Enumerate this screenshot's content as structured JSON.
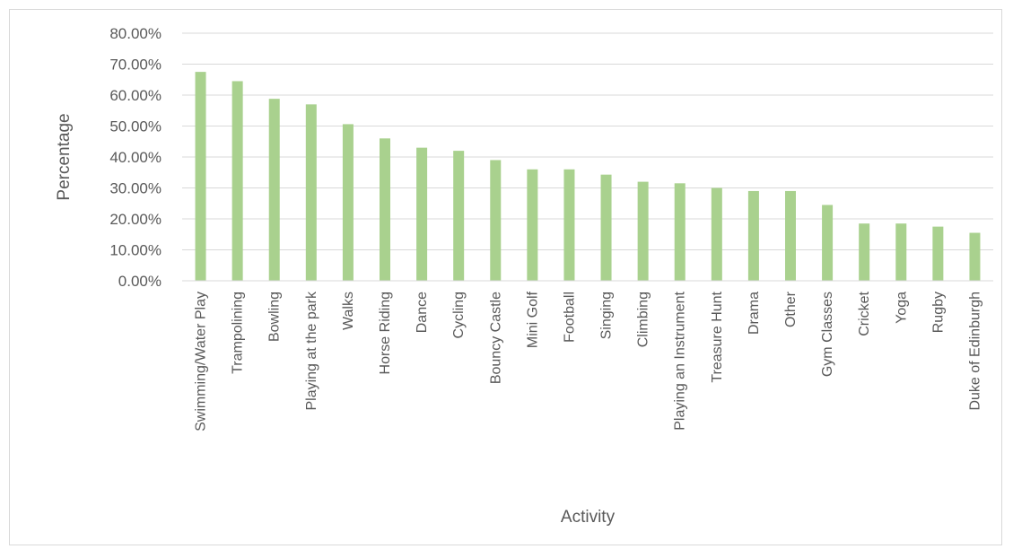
{
  "chart_data": {
    "type": "bar",
    "xlabel": "Activity",
    "ylabel": "Percentage",
    "ylim": [
      0,
      0.8
    ],
    "ytick_step": 0.1,
    "ytick_labels": [
      "0.00%",
      "10.00%",
      "20.00%",
      "30.00%",
      "40.00%",
      "50.00%",
      "60.00%",
      "70.00%",
      "80.00%"
    ],
    "grid": true,
    "legend": "none",
    "bar_color": "#a9d18e",
    "categories": [
      "Swimming/Water Play",
      "Trampolining",
      "Bowling",
      "Playing at the park",
      "Walks",
      "Horse Riding",
      "Dance",
      "Cycling",
      "Bouncy Castle",
      "Mini Golf",
      "Football",
      "Singing",
      "Climbing",
      "Playing an Instrument",
      "Treasure Hunt",
      "Drama",
      "Other",
      "Gym Classes",
      "Cricket",
      "Yoga",
      "Rugby",
      "Duke of Edinburgh"
    ],
    "values": [
      0.675,
      0.645,
      0.588,
      0.57,
      0.506,
      0.46,
      0.43,
      0.42,
      0.39,
      0.36,
      0.36,
      0.343,
      0.32,
      0.315,
      0.3,
      0.29,
      0.29,
      0.245,
      0.185,
      0.185,
      0.175,
      0.155
    ]
  }
}
